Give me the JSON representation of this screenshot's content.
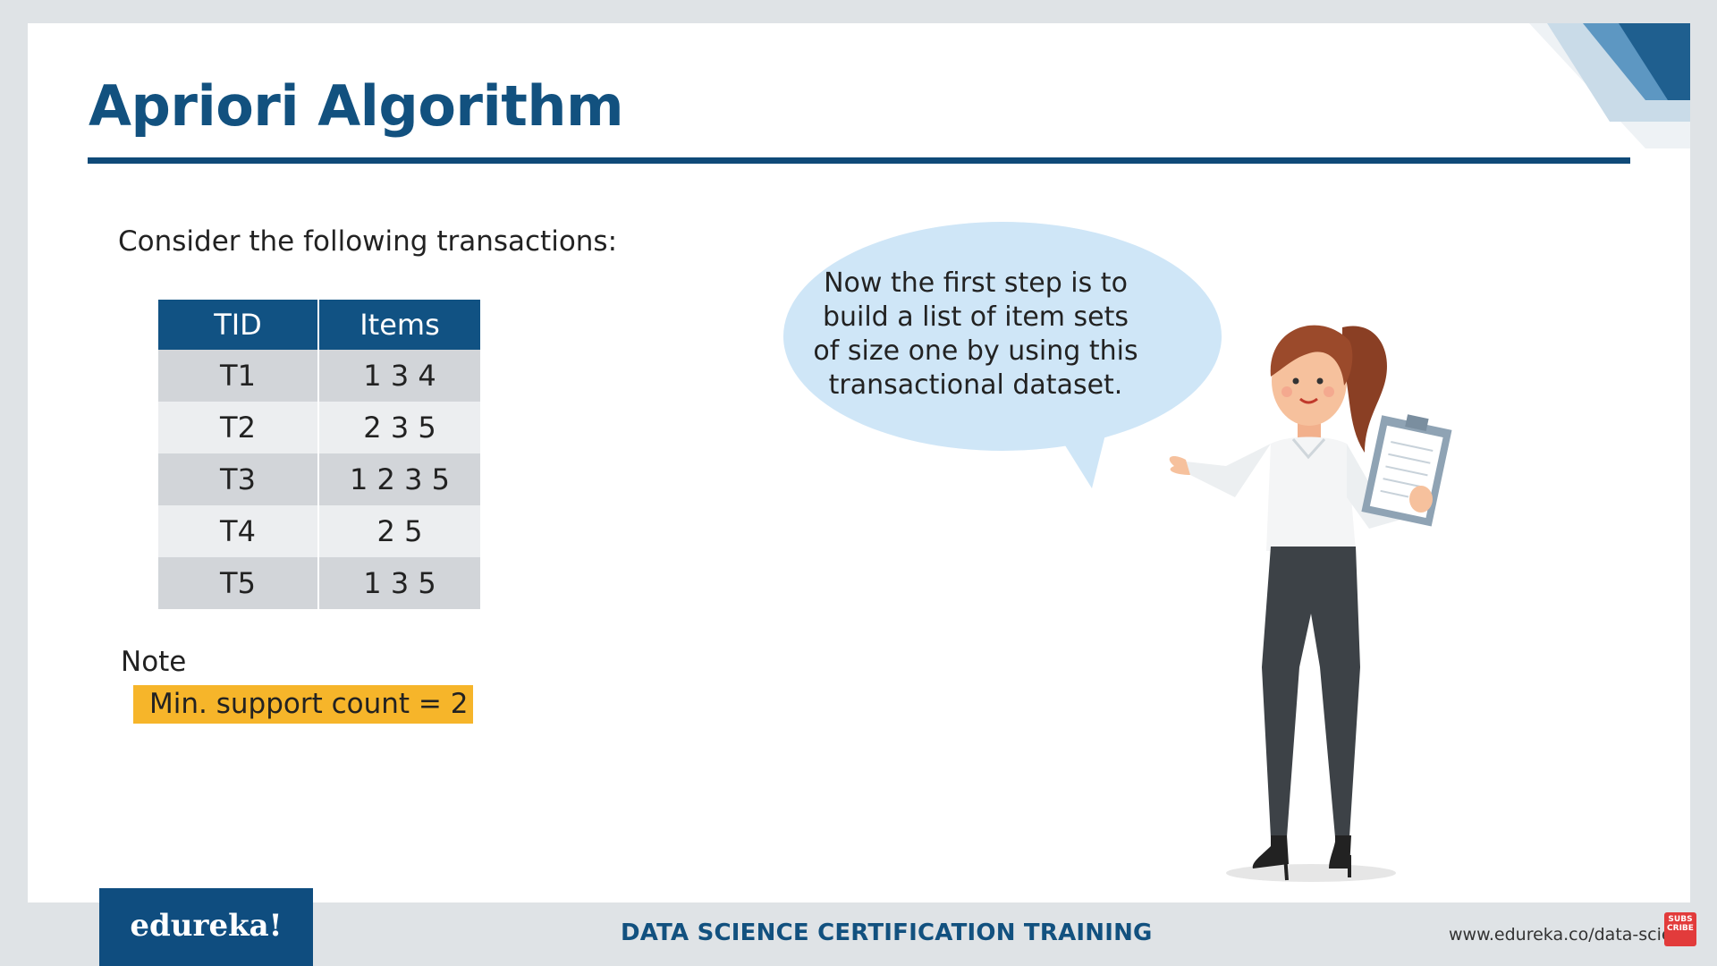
{
  "slide": {
    "title": "Apriori Algorithm",
    "intro": "Consider the following transactions:"
  },
  "table": {
    "headers": [
      "TID",
      "Items"
    ],
    "rows": [
      [
        "T1",
        "1 3 4"
      ],
      [
        "T2",
        "2 3 5"
      ],
      [
        "T3",
        "1 2 3 5"
      ],
      [
        "T4",
        "2 5"
      ],
      [
        "T5",
        "1 3 5"
      ]
    ]
  },
  "note": {
    "label": "Note",
    "value": "Min. support count = 2"
  },
  "speech": {
    "text": "Now the first step is to build a list of item sets of size one by using this transactional dataset."
  },
  "footer": {
    "logo": "edureka!",
    "title": "DATA SCIENCE CERTIFICATION TRAINING",
    "url": "www.edureka.co/data-science",
    "subscribe": "SUBS CRIBE"
  },
  "colors": {
    "brand_blue": "#115283",
    "note_yellow": "#f6b52a",
    "bubble_blue": "#cfe6f7"
  },
  "icons": {
    "presenter": "woman-with-clipboard-icon",
    "corner": "corner-stripes-icon"
  }
}
